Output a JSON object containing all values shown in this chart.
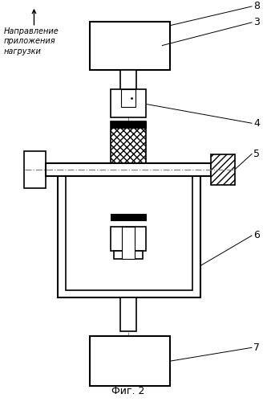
{
  "title": "Фиг. 2",
  "label_text": "Направление\nприложения\nнагрузки",
  "numbers": [
    "8",
    "3",
    "4",
    "5",
    "6",
    "7"
  ],
  "background": "#ffffff",
  "line_color": "#000000"
}
